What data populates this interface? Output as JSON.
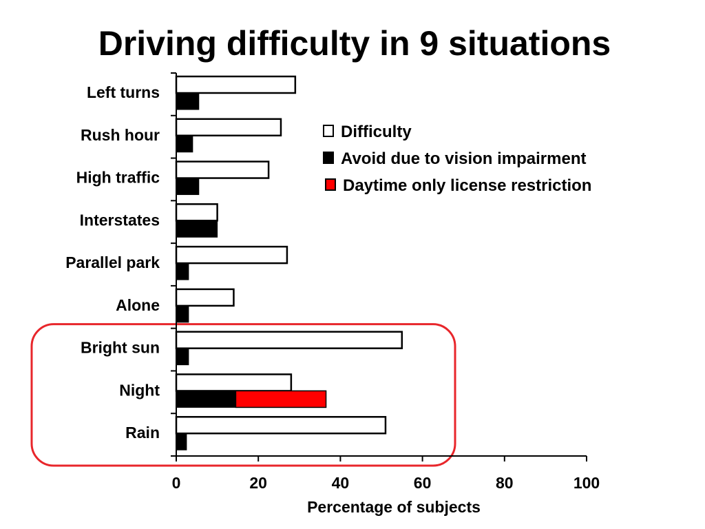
{
  "chart_data": {
    "type": "bar",
    "orientation": "horizontal",
    "title": "Driving difficulty in 9 situations",
    "xlabel": "Percentage of subjects",
    "ylabel": "",
    "xlim": [
      0,
      100
    ],
    "x_ticks": [
      0,
      20,
      40,
      60,
      80,
      100
    ],
    "grid": false,
    "legend_placement": "upper-right",
    "categories": [
      "Left turns",
      "Rush hour",
      "High traffic",
      "Interstates",
      "Parallel park",
      "Alone",
      "Bright sun",
      "Night",
      "Rain"
    ],
    "series": [
      {
        "name": "Difficulty",
        "color": "#ffffff",
        "values": [
          29,
          25.5,
          22.5,
          10,
          27,
          14,
          55,
          28,
          51
        ]
      },
      {
        "name": "Avoid due to vision impairment",
        "color": "#000000",
        "values": [
          5.5,
          4,
          5.5,
          10,
          3,
          3,
          3,
          14.5,
          2.5
        ]
      },
      {
        "name": "Daytime only license restriction",
        "color": "#ff0000",
        "stacked_on": "Avoid due to vision impairment",
        "values": [
          0,
          0,
          0,
          0,
          0,
          0,
          0,
          22,
          0
        ]
      }
    ],
    "highlight": {
      "categories": [
        "Bright sun",
        "Night",
        "Rain"
      ],
      "color": "#e8262b",
      "shape": "rounded-rectangle"
    }
  }
}
